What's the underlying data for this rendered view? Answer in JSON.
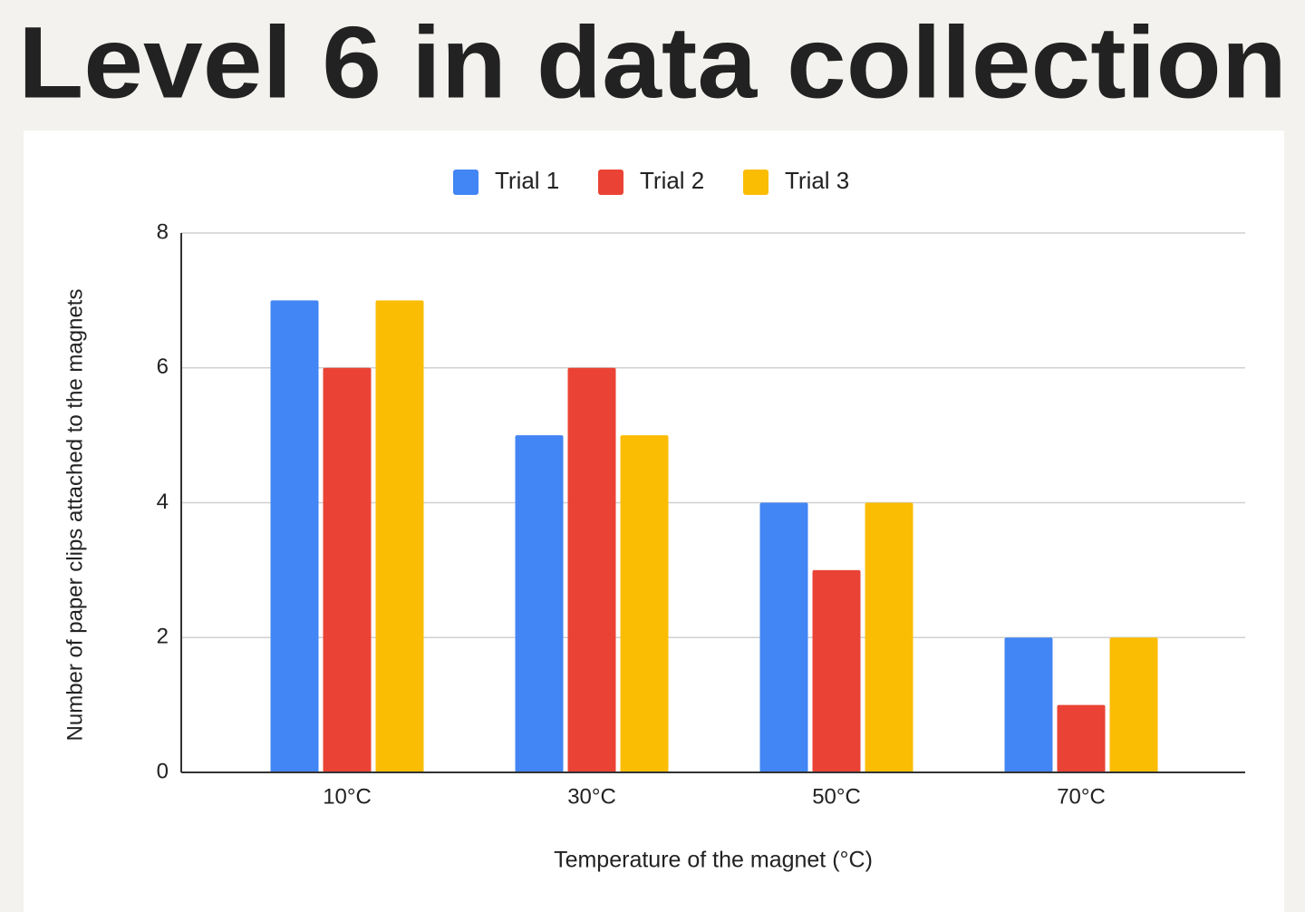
{
  "chart_data": {
    "type": "bar",
    "title": "Level 6 in data collection",
    "categories": [
      "10°C",
      "30°C",
      "50°C",
      "70°C"
    ],
    "series": [
      {
        "name": "Trial 1",
        "color": "#4285f4",
        "values": [
          7,
          5,
          4,
          2
        ]
      },
      {
        "name": "Trial 2",
        "color": "#ea4335",
        "values": [
          6,
          6,
          3,
          1
        ]
      },
      {
        "name": "Trial 3",
        "color": "#fbbc04",
        "values": [
          7,
          5,
          4,
          2
        ]
      }
    ],
    "x_label": "Temperature of the magnet (°C)",
    "y_label": "Number of paper clips attached to the magnets",
    "ylim": [
      0,
      8
    ],
    "yticks": [
      0,
      2,
      4,
      6,
      8
    ],
    "grid": true,
    "legend": "top"
  }
}
